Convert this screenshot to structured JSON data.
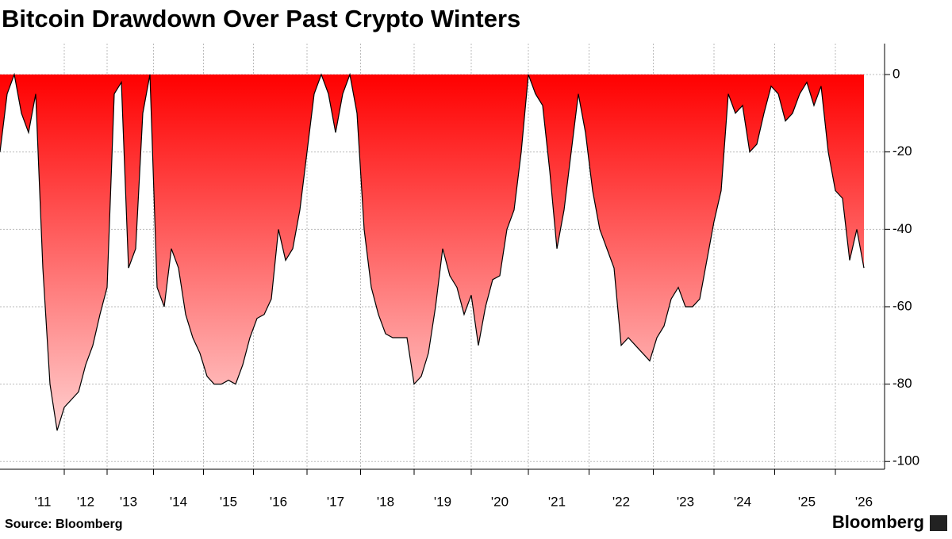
{
  "chart_data": {
    "type": "area",
    "title": "Bitcoin Drawdown Over Past Crypto Winters",
    "source": "Source: Bloomberg",
    "brand": "Bloomberg",
    "categories": [
      null,
      null,
      null,
      null,
      null,
      null,
      "'11",
      null,
      null,
      null,
      null,
      null,
      "'12",
      null,
      null,
      null,
      null,
      null,
      "'13",
      null,
      null,
      null,
      null,
      null,
      null,
      "'14",
      null,
      null,
      null,
      null,
      null,
      null,
      "'15",
      null,
      null,
      null,
      null,
      null,
      null,
      "'16",
      null,
      null,
      null,
      null,
      null,
      null,
      null,
      "'17",
      null,
      null,
      null,
      null,
      null,
      null,
      "'18",
      null,
      null,
      null,
      null,
      null,
      null,
      null,
      "'19",
      null,
      null,
      null,
      null,
      null,
      null,
      null,
      "'20",
      null,
      null,
      null,
      null,
      null,
      null,
      null,
      "'21",
      null,
      null,
      null,
      null,
      null,
      null,
      null,
      null,
      "'22",
      null,
      null,
      null,
      null,
      null,
      null,
      null,
      null,
      "'23",
      null,
      null,
      null,
      null,
      null,
      null,
      null,
      "'24",
      null,
      null,
      null,
      null,
      null,
      null,
      null,
      null,
      "'25",
      null,
      null,
      null,
      null,
      null,
      null,
      null,
      "'26"
    ],
    "values": [
      -20,
      -5,
      0,
      -10,
      -15,
      -5,
      -50,
      -80,
      -92,
      -86,
      -84,
      -82,
      -75,
      -70,
      -62,
      -55,
      -5,
      -2,
      -50,
      -45,
      -10,
      0,
      -55,
      -60,
      -45,
      -50,
      -62,
      -68,
      -72,
      -78,
      -80,
      -80,
      -79,
      -80,
      -75,
      -68,
      -63,
      -62,
      -58,
      -40,
      -48,
      -45,
      -35,
      -20,
      -5,
      0,
      -5,
      -15,
      -5,
      0,
      -10,
      -40,
      -55,
      -62,
      -67,
      -68,
      -68,
      -68,
      -80,
      -78,
      -72,
      -60,
      -45,
      -52,
      -55,
      -62,
      -57,
      -70,
      -60,
      -53,
      -52,
      -40,
      -35,
      -20,
      0,
      -5,
      -8,
      -25,
      -45,
      -35,
      -20,
      -5,
      -15,
      -30,
      -40,
      -45,
      -50,
      -70,
      -68,
      -70,
      -72,
      -74,
      -68,
      -65,
      -58,
      -55,
      -60,
      -60,
      -58,
      -48,
      -38,
      -30,
      -5,
      -10,
      -8,
      -20,
      -18,
      -10,
      -3,
      -5,
      -12,
      -10,
      -5,
      -2,
      -8,
      -3,
      -20,
      -30,
      -32,
      -48,
      -40,
      -50
    ],
    "color_top": "#ff0000",
    "color_bottom": "#ffd0d0",
    "line_color": "#000000",
    "ylim": [
      -102,
      8
    ],
    "yticks": [
      0,
      -20,
      -40,
      -60,
      -80,
      -100
    ],
    "grid": true
  }
}
